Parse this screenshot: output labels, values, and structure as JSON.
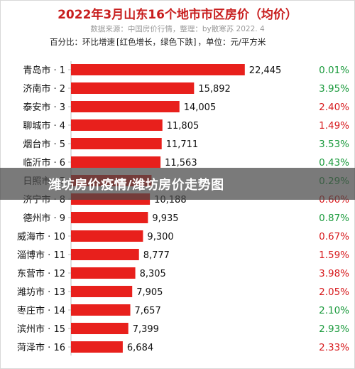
{
  "header": {
    "title": "2022年3月山东16个地市市区房价（均价）",
    "source": "数据来源：中国房价行情，整理：by散寒苏  2022. 4",
    "legend_prefix": "百分比：环比增速",
    "legend_detail": "[红色增长，绿色下跌]",
    "legend_unit": "，单位：元/平方米"
  },
  "watermark": {
    "text": "潍坊房价疫情/潍坊房价走势图"
  },
  "colors": {
    "bar": "#e8201c",
    "increase": "#d7191c",
    "decrease": "#1a9a3c",
    "title": "#c81e1e"
  },
  "chart_data": {
    "type": "bar",
    "orientation": "horizontal",
    "title": "2022年3月山东16个地市市区房价（均价）",
    "categories": [
      "青岛市 · 1",
      "济南市 · 2",
      "泰安市 · 3",
      "聊城市 · 4",
      "烟台市 · 5",
      "临沂市 · 6",
      "日照市 · 7",
      "济宁市 · 8",
      "德州市 · 9",
      "威海市 · 10",
      "淄博市 · 11",
      "东营市 · 12",
      "潍坊市 · 13",
      "枣庄市 · 14",
      "滨州市 · 15",
      "菏泽市 · 16"
    ],
    "values": [
      22445,
      15892,
      14005,
      11805,
      11711,
      11563,
      10400,
      10188,
      9935,
      9300,
      8777,
      8305,
      7905,
      7657,
      7399,
      6684
    ],
    "value_labels": [
      "22,445",
      "15,892",
      "14,005",
      "11,805",
      "11,711",
      "11,563",
      "",
      "10,188",
      "9,935",
      "9,300",
      "8,777",
      "8,305",
      "7,905",
      "7,657",
      "7,399",
      "6,684"
    ],
    "pct_labels": [
      "0.01%",
      "3.95%",
      "2.40%",
      "1.49%",
      "3.53%",
      "0.43%",
      "0.29%",
      "0.60%",
      "0.87%",
      "0.67%",
      "1.59%",
      "3.98%",
      "2.05%",
      "2.10%",
      "2.93%",
      "2.33%"
    ],
    "pct_trend": [
      "down",
      "down",
      "up",
      "up",
      "down",
      "down",
      "down",
      "up",
      "down",
      "up",
      "up",
      "up",
      "up",
      "down",
      "down",
      "up"
    ],
    "xlim": [
      0,
      25000
    ],
    "grid": false,
    "legend": "top-left"
  }
}
